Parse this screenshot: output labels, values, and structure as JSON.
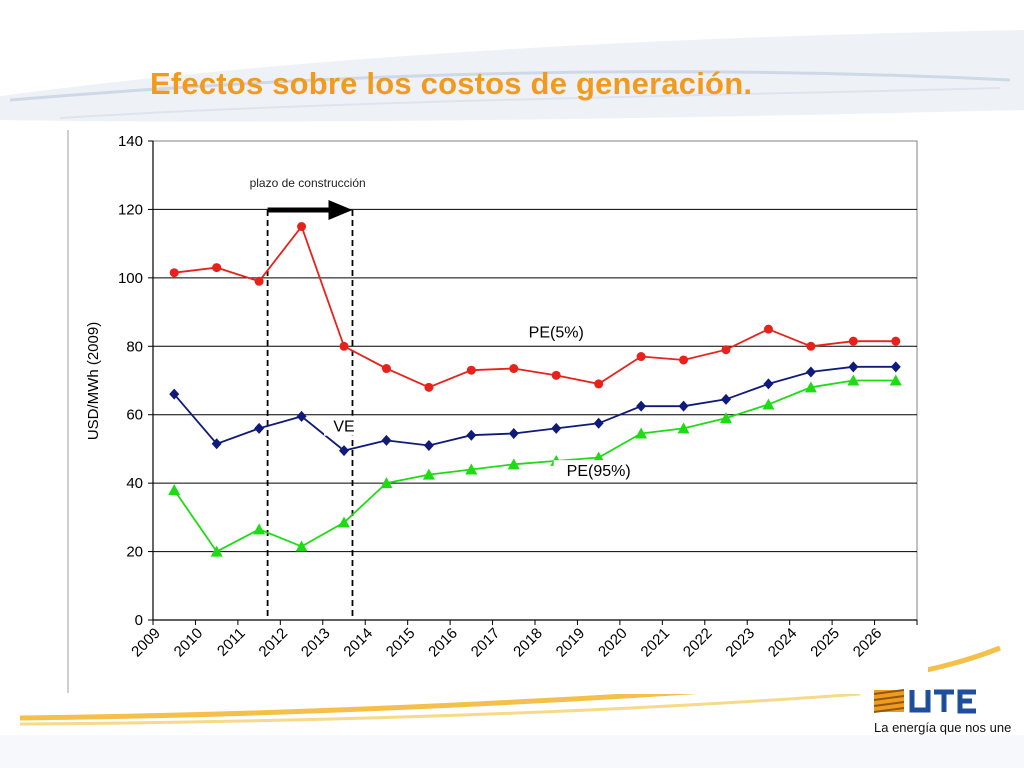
{
  "slide": {
    "title": "Efectos sobre los costos de generación.",
    "logo_text": "UTE",
    "tagline": "La energía que nos une",
    "accent_color": "#f29a1e",
    "logo_color": "#1f4e9c"
  },
  "chart_data": {
    "type": "line",
    "ylabel": "USD/MWh (2009)",
    "xlabel": "",
    "ylim": [
      0,
      140
    ],
    "yticks": [
      0,
      20,
      40,
      60,
      80,
      100,
      120,
      140
    ],
    "categories": [
      "2009",
      "2010",
      "2011",
      "2012",
      "2013",
      "2014",
      "2015",
      "2016",
      "2017",
      "2018",
      "2019",
      "2020",
      "2021",
      "2022",
      "2023",
      "2024",
      "2025",
      "2026"
    ],
    "grid": true,
    "series": [
      {
        "name": "PE(5%)",
        "color": "#e8221a",
        "marker": "circle",
        "values": [
          101.5,
          103,
          99,
          115,
          80,
          73.5,
          68,
          73,
          73.5,
          71.5,
          69,
          77,
          76,
          79,
          85,
          80,
          81.5,
          81.5
        ]
      },
      {
        "name": "VE",
        "color": "#101a7a",
        "marker": "diamond",
        "values": [
          66,
          51.5,
          56,
          59.5,
          49.5,
          52.5,
          51,
          54,
          54.5,
          56,
          57.5,
          62.5,
          62.5,
          64.5,
          69,
          72.5,
          74,
          74
        ]
      },
      {
        "name": "PE(95%)",
        "color": "#1edc14",
        "marker": "triangle",
        "values": [
          38,
          20,
          26.5,
          21.5,
          28.5,
          40,
          42.5,
          44,
          45.5,
          46.5,
          47.5,
          54.5,
          56,
          59,
          63,
          68,
          70,
          70
        ]
      }
    ],
    "annotations": {
      "construction_label": "plazo de construcción",
      "construction_start": 2011,
      "construction_end": 2013
    }
  }
}
